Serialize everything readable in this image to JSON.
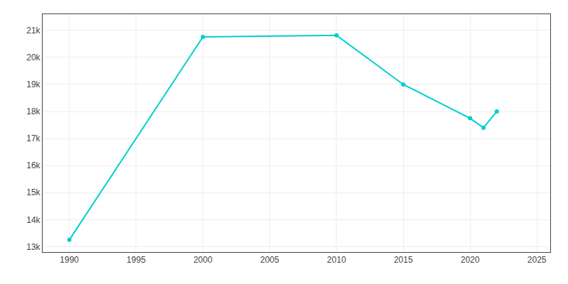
{
  "chart_data": {
    "type": "line",
    "x": [
      1990,
      2000,
      2010,
      2015,
      2020,
      2021,
      2022
    ],
    "values": [
      13250,
      20760,
      20820,
      19000,
      17750,
      17400,
      18000
    ],
    "color": "#00CED1",
    "marker": "o",
    "xlim": [
      1988,
      2026
    ],
    "ylim": [
      12800,
      21600
    ],
    "xticks": [
      1990,
      1995,
      2000,
      2005,
      2010,
      2015,
      2020,
      2025
    ],
    "yticks": [
      {
        "value": 13000,
        "label": "13k"
      },
      {
        "value": 14000,
        "label": "14k"
      },
      {
        "value": 15000,
        "label": "15k"
      },
      {
        "value": 16000,
        "label": "16k"
      },
      {
        "value": 17000,
        "label": "17k"
      },
      {
        "value": 18000,
        "label": "18k"
      },
      {
        "value": 19000,
        "label": "19k"
      },
      {
        "value": 20000,
        "label": "20k"
      },
      {
        "value": 21000,
        "label": "21k"
      }
    ],
    "grid": true
  }
}
